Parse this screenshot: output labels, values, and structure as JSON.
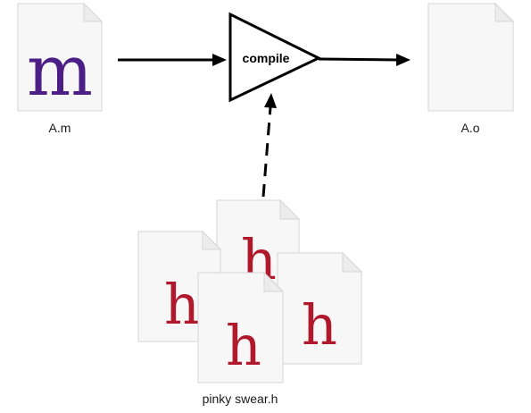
{
  "source_file": {
    "glyph": "m",
    "label": "A.m",
    "glyph_color": "#4b1f86"
  },
  "compiler": {
    "label": "compile"
  },
  "output_file": {
    "label": "A.o"
  },
  "header_files": {
    "glyph": "h",
    "label": "pinky swear.h",
    "glyph_color": "#b0182b"
  }
}
